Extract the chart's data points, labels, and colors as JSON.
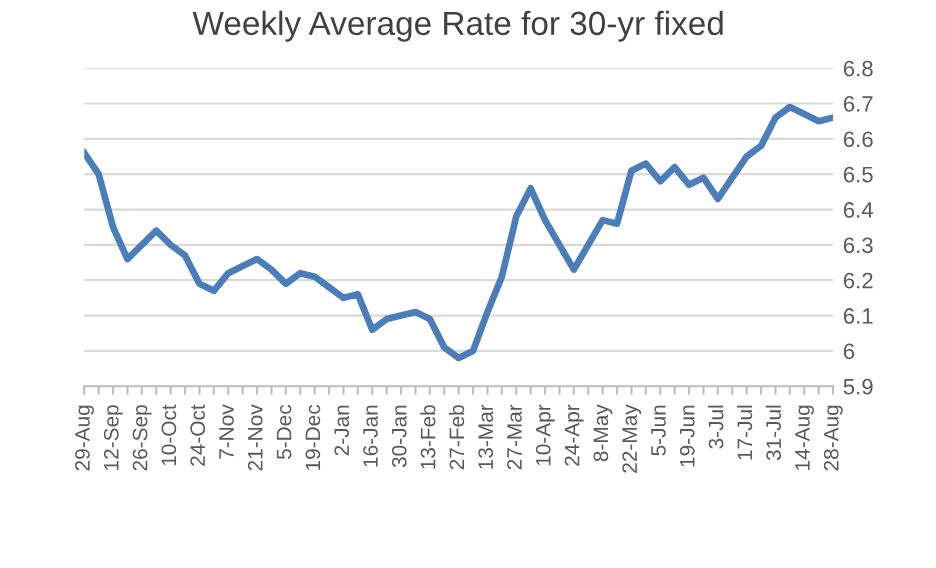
{
  "chart_data": {
    "type": "line",
    "title": "Weekly Average Rate for 30-yr fixed",
    "categories": [
      "29-Aug",
      null,
      "12-Sep",
      null,
      "26-Sep",
      null,
      "10-Oct",
      null,
      "24-Oct",
      null,
      "7-Nov",
      null,
      "21-Nov",
      null,
      "5-Dec",
      null,
      "19-Dec",
      null,
      "2-Jan",
      null,
      "16-Jan",
      null,
      "30-Jan",
      null,
      "13-Feb",
      null,
      "27-Feb",
      null,
      "13-Mar",
      null,
      "27-Mar",
      null,
      "10-Apr",
      null,
      "24-Apr",
      null,
      "8-May",
      null,
      "22-May",
      null,
      "5-Jun",
      null,
      "19-Jun",
      null,
      "3-Jul",
      null,
      "17-Jul",
      null,
      "31-Jul",
      null,
      "14-Aug",
      null,
      "28-Aug"
    ],
    "series": [
      {
        "color": "#4a7ebb",
        "values": [
          6.56,
          6.5,
          6.35,
          6.26,
          6.3,
          6.34,
          6.3,
          6.27,
          6.19,
          6.17,
          6.22,
          6.24,
          6.26,
          6.23,
          6.19,
          6.22,
          6.21,
          6.18,
          6.15,
          6.16,
          6.06,
          6.09,
          6.1,
          6.11,
          6.09,
          6.01,
          5.98,
          6.0,
          6.11,
          6.21,
          6.38,
          6.46,
          6.37,
          6.3,
          6.23,
          6.3,
          6.37,
          6.36,
          6.51,
          6.53,
          6.48,
          6.52,
          6.47,
          6.49,
          6.43,
          6.49,
          6.55,
          6.58,
          6.66,
          6.69,
          6.67,
          6.65,
          6.66
        ]
      }
    ],
    "ylim": [
      5.9,
      6.8
    ],
    "yticks": [
      5.9,
      6,
      6.1,
      6.2,
      6.3,
      6.4,
      6.5,
      6.6,
      6.7,
      6.8
    ],
    "grid": "y",
    "legend": false,
    "marker": "none",
    "line_style": "solid"
  }
}
